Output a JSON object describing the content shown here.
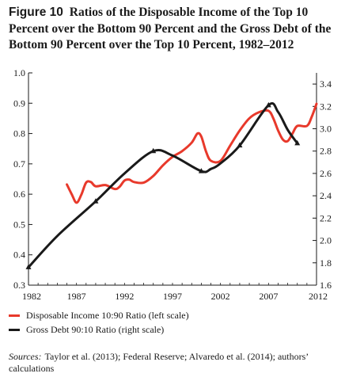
{
  "figure": {
    "label": "Figure 10",
    "title": "Ratios of the Disposable Income of the Top 10 Percent over the Bottom 90 Percent and the Gross Debt of the Bottom 90 Percent over the Top 10 Percent, 1982–2012"
  },
  "legend": [
    {
      "label": "Disposable Income 10:90 Ratio (left scale)",
      "color": "#e8392b"
    },
    {
      "label": "Gross Debt 90:10 Ratio (right scale)",
      "color": "#1a1a1a"
    }
  ],
  "sources": {
    "label": "Sources:",
    "text": "Taylor et al. (2013); Federal Reserve; Alvaredo et al. (2014); authors’ calculations"
  },
  "chart_data": {
    "type": "line",
    "title": "Ratios of the Disposable Income of the Top 10 Percent over the Bottom 90 Percent and the Gross Debt of the Bottom 90 Percent over the Top 10 Percent, 1982–2012",
    "xlim": [
      1982,
      2012
    ],
    "x_ticks": [
      "1982",
      "1987",
      "1992",
      "1997",
      "2002",
      "2007",
      "2012"
    ],
    "y_left": {
      "range": [
        0.3,
        1.0
      ],
      "ticks": [
        "0.3",
        "0.4",
        "0.5",
        "0.6",
        "0.7",
        "0.8",
        "0.9",
        "1.0"
      ]
    },
    "y_right": {
      "range": [
        1.6,
        3.5
      ],
      "ticks": [
        "1.6",
        "1.8",
        "2.0",
        "2.2",
        "2.4",
        "2.6",
        "2.8",
        "3.0",
        "3.2",
        "3.4"
      ]
    },
    "series": [
      {
        "name": "Disposable Income 10:90 Ratio (left scale)",
        "axis": "left",
        "color": "#e8392b",
        "x": [
          1986,
          1986.5,
          1987,
          1987.5,
          1988,
          1988.5,
          1989,
          1990,
          1991,
          1991.5,
          1992,
          1992.5,
          1993,
          1994,
          1995,
          1996,
          1997,
          1998,
          1999,
          1999.6,
          2000,
          2000.5,
          2001,
          2002,
          2003,
          2004,
          2005,
          2006,
          2007,
          2007.5,
          2008,
          2008.5,
          2009,
          2009.5,
          2010,
          2011,
          2011.5,
          2012
        ],
        "values": [
          0.632,
          0.6,
          0.572,
          0.598,
          0.638,
          0.64,
          0.626,
          0.63,
          0.617,
          0.625,
          0.645,
          0.648,
          0.64,
          0.638,
          0.66,
          0.695,
          0.723,
          0.742,
          0.77,
          0.8,
          0.79,
          0.74,
          0.71,
          0.71,
          0.76,
          0.81,
          0.85,
          0.87,
          0.875,
          0.85,
          0.81,
          0.78,
          0.775,
          0.8,
          0.825,
          0.825,
          0.855,
          0.898
        ]
      },
      {
        "name": "Gross Debt 90:10 Ratio (right scale)",
        "axis": "right",
        "color": "#1a1a1a",
        "x": [
          1982,
          1985,
          1989,
          1992,
          1995,
          1997,
          2000,
          2001,
          2002,
          2004,
          2007,
          2008,
          2009,
          2010
        ],
        "values": [
          1.76,
          2.04,
          2.35,
          2.6,
          2.8,
          2.76,
          2.62,
          2.64,
          2.69,
          2.85,
          3.21,
          3.15,
          2.99,
          2.87
        ],
        "markers": [
          1982,
          1989,
          1995,
          2000,
          2004,
          2007,
          2010
        ]
      }
    ],
    "grid": false,
    "legend_position": "bottom-left"
  }
}
